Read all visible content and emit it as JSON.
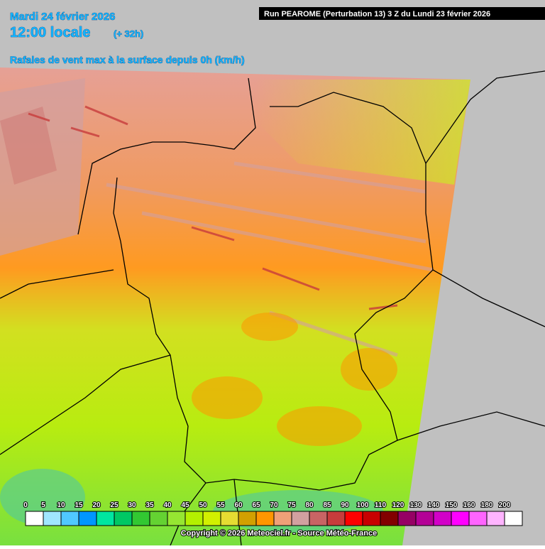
{
  "header": {
    "date": "Mardi 24 février 2026",
    "time": "12:00 locale",
    "offset": "(+ 32h)",
    "run": "Run PEAROME (Perturbation 13) 3 Z du Lundi 23 février 2026",
    "title": "Rafales de vent max à la surface depuis 0h (km/h)"
  },
  "legend": {
    "ticks": [
      0,
      5,
      10,
      15,
      20,
      25,
      30,
      35,
      40,
      45,
      50,
      55,
      60,
      65,
      70,
      75,
      80,
      85,
      90,
      100,
      110,
      120,
      130,
      140,
      150,
      160,
      180,
      200
    ],
    "colors": [
      "#ffffff",
      "#a0e6ff",
      "#50c8ff",
      "#0096ff",
      "#00e6a0",
      "#00c864",
      "#32c832",
      "#64d232",
      "#96e632",
      "#b4f000",
      "#d2f000",
      "#e6dc32",
      "#d2a000",
      "#ff9600",
      "#f0a078",
      "#d2a0a0",
      "#c86464",
      "#c83c3c",
      "#ff0000",
      "#c80000",
      "#820000",
      "#960064",
      "#b40096",
      "#d200c8",
      "#ff00ff",
      "#ff64ff",
      "#ffb4ff",
      "#ffffff"
    ]
  },
  "footer": "Copyright © 2026 Meteociel.fr - Source Météo-France"
}
